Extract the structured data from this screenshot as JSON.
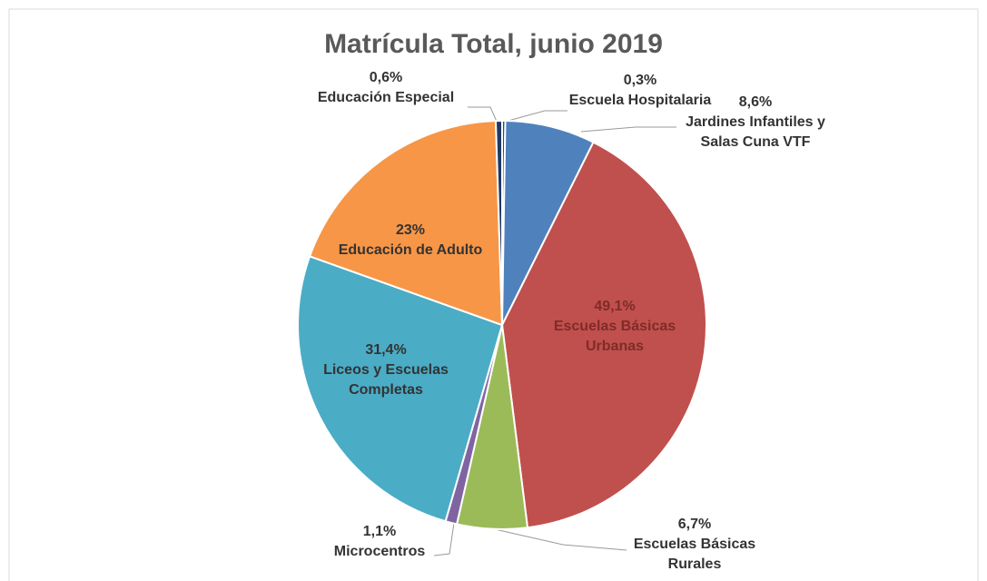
{
  "chart_data": {
    "type": "pie",
    "title": "Matrícula Total, junio 2019",
    "categories": [
      "Escuela Hospitalaria",
      "Jardines Infantiles y Salas Cuna VTF",
      "Escuelas Básicas Urbanas",
      "Escuelas Básicas Rurales",
      "Microcentros",
      "Liceos y Escuelas Completas",
      "Educación de Adulto",
      "Educación Especial"
    ],
    "values": [
      0.3,
      8.6,
      49.1,
      6.7,
      1.1,
      31.4,
      23,
      0.6
    ],
    "value_labels": [
      "0,3%",
      "8,6%",
      "49,1%",
      "6,7%",
      "1,1%",
      "31,4%",
      "23%",
      "0,6%"
    ],
    "colors": [
      "#2c4d75",
      "#4f81bd",
      "#c0504d",
      "#9bbb59",
      "#8064a2",
      "#4bacc6",
      "#f79646",
      "#1f3864"
    ]
  }
}
